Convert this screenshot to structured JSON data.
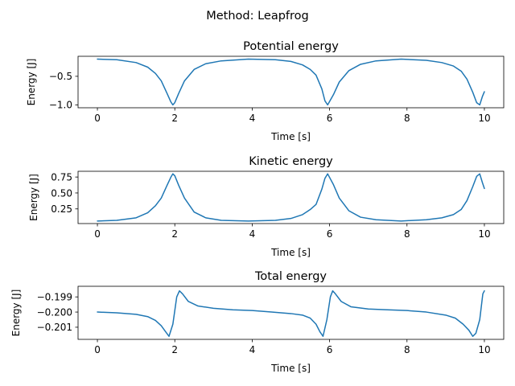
{
  "figure": {
    "suptitle": "Method: Leapfrog"
  },
  "chart_data": [
    {
      "type": "line",
      "title": "Potential energy",
      "xlabel": "Time [s]",
      "ylabel": "Energy [J]",
      "xlim": [
        -0.5,
        10.5
      ],
      "ylim": [
        -1.05,
        -0.15
      ],
      "xticks": [
        0,
        2,
        4,
        6,
        8,
        10
      ],
      "xtick_labels": [
        "0",
        "2",
        "4",
        "6",
        "8",
        "10"
      ],
      "yticks": [
        -0.5,
        -1.0
      ],
      "ytick_labels": [
        "−0.5",
        "−1.0"
      ],
      "series": [
        {
          "color": "#1f77b4",
          "x": [
            0.0,
            0.5,
            1.0,
            1.3,
            1.5,
            1.65,
            1.8,
            1.9,
            1.95,
            2.0,
            2.1,
            2.25,
            2.5,
            2.8,
            3.2,
            3.9,
            4.6,
            5.0,
            5.3,
            5.5,
            5.65,
            5.8,
            5.88,
            5.95,
            6.1,
            6.25,
            6.5,
            6.8,
            7.2,
            7.85,
            8.5,
            8.9,
            9.2,
            9.4,
            9.55,
            9.7,
            9.8,
            9.88,
            9.95,
            10.0
          ],
          "y": [
            -0.2,
            -0.21,
            -0.26,
            -0.34,
            -0.45,
            -0.58,
            -0.8,
            -0.95,
            -1.0,
            -0.96,
            -0.8,
            -0.58,
            -0.38,
            -0.28,
            -0.23,
            -0.2,
            -0.21,
            -0.24,
            -0.3,
            -0.38,
            -0.48,
            -0.72,
            -0.93,
            -1.0,
            -0.82,
            -0.6,
            -0.4,
            -0.29,
            -0.23,
            -0.2,
            -0.22,
            -0.26,
            -0.32,
            -0.41,
            -0.55,
            -0.78,
            -0.96,
            -1.0,
            -0.85,
            -0.77
          ]
        }
      ]
    },
    {
      "type": "line",
      "title": "Kinetic energy",
      "xlabel": "Time [s]",
      "ylabel": "Energy [J]",
      "xlim": [
        -0.5,
        10.5
      ],
      "ylim": [
        0.02,
        0.84
      ],
      "xticks": [
        0,
        2,
        4,
        6,
        8,
        10
      ],
      "xtick_labels": [
        "0",
        "2",
        "4",
        "6",
        "8",
        "10"
      ],
      "yticks": [
        0.75,
        0.5,
        0.25
      ],
      "ytick_labels": [
        "0.75",
        "0.50",
        "0.25"
      ],
      "series": [
        {
          "color": "#1f77b4",
          "x": [
            0.0,
            0.5,
            1.0,
            1.3,
            1.5,
            1.65,
            1.8,
            1.9,
            1.95,
            2.0,
            2.1,
            2.25,
            2.5,
            2.8,
            3.2,
            3.9,
            4.6,
            5.0,
            5.3,
            5.5,
            5.65,
            5.8,
            5.88,
            5.95,
            6.1,
            6.25,
            6.5,
            6.8,
            7.2,
            7.85,
            8.5,
            8.9,
            9.2,
            9.4,
            9.55,
            9.7,
            9.8,
            9.88,
            9.95,
            10.0
          ],
          "y": [
            0.06,
            0.07,
            0.11,
            0.19,
            0.3,
            0.42,
            0.62,
            0.75,
            0.8,
            0.77,
            0.62,
            0.42,
            0.2,
            0.11,
            0.07,
            0.06,
            0.07,
            0.1,
            0.16,
            0.24,
            0.32,
            0.56,
            0.73,
            0.8,
            0.63,
            0.42,
            0.22,
            0.12,
            0.08,
            0.06,
            0.08,
            0.11,
            0.16,
            0.24,
            0.38,
            0.6,
            0.76,
            0.8,
            0.66,
            0.57
          ]
        }
      ]
    },
    {
      "type": "line",
      "title": "Total energy",
      "xlabel": "Time [s]",
      "ylabel": "Energy [J]",
      "xlim": [
        -0.5,
        10.5
      ],
      "ylim": [
        -0.2018,
        -0.1983
      ],
      "xticks": [
        0,
        2,
        4,
        6,
        8,
        10
      ],
      "xtick_labels": [
        "0",
        "2",
        "4",
        "6",
        "8",
        "10"
      ],
      "yticks": [
        -0.199,
        -0.2,
        -0.201
      ],
      "ytick_labels": [
        "−0.199",
        "−0.200",
        "−0.201"
      ],
      "series": [
        {
          "color": "#1f77b4",
          "x": [
            0.0,
            0.5,
            1.0,
            1.3,
            1.5,
            1.65,
            1.75,
            1.85,
            1.95,
            2.05,
            2.12,
            2.2,
            2.35,
            2.6,
            3.0,
            3.5,
            4.0,
            4.5,
            5.0,
            5.3,
            5.5,
            5.65,
            5.75,
            5.83,
            5.93,
            6.02,
            6.08,
            6.15,
            6.3,
            6.55,
            7.0,
            7.5,
            8.0,
            8.5,
            9.0,
            9.25,
            9.45,
            9.6,
            9.7,
            9.78,
            9.88,
            9.96,
            10.0
          ],
          "y": [
            -0.2,
            -0.20005,
            -0.20015,
            -0.2003,
            -0.20055,
            -0.2009,
            -0.20125,
            -0.2016,
            -0.2008,
            -0.199,
            -0.1986,
            -0.1988,
            -0.1993,
            -0.1996,
            -0.19975,
            -0.19985,
            -0.1999,
            -0.2,
            -0.2001,
            -0.2002,
            -0.2004,
            -0.2008,
            -0.2013,
            -0.2016,
            -0.2005,
            -0.199,
            -0.1986,
            -0.1988,
            -0.1993,
            -0.19965,
            -0.1998,
            -0.19985,
            -0.1999,
            -0.2,
            -0.2002,
            -0.2004,
            -0.2008,
            -0.2012,
            -0.2016,
            -0.2014,
            -0.2005,
            -0.1988,
            -0.1986
          ]
        }
      ]
    }
  ]
}
